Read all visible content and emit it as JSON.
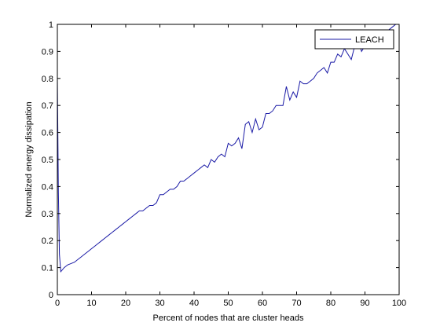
{
  "chart_data": {
    "type": "line",
    "title": "",
    "xlabel": "Percent of nodes that are cluster heads",
    "ylabel": "Normalized energy dissipation",
    "xlim": [
      0,
      100
    ],
    "ylim": [
      0,
      1
    ],
    "xticks": [
      0,
      10,
      20,
      30,
      40,
      50,
      60,
      70,
      80,
      90,
      100
    ],
    "yticks": [
      0,
      0.1,
      0.2,
      0.3,
      0.4,
      0.5,
      0.6,
      0.7,
      0.8,
      0.9,
      1
    ],
    "grid": false,
    "legend_position": "top-right",
    "series": [
      {
        "name": "LEACH",
        "color": "#1a1aa6",
        "x": [
          0,
          0.3,
          0.6,
          1,
          2,
          3,
          4,
          5,
          6,
          7,
          8,
          9,
          10,
          11,
          12,
          13,
          14,
          15,
          16,
          17,
          18,
          19,
          20,
          21,
          22,
          23,
          24,
          25,
          26,
          27,
          28,
          29,
          30,
          31,
          32,
          33,
          34,
          35,
          36,
          37,
          38,
          39,
          40,
          41,
          42,
          43,
          44,
          45,
          46,
          47,
          48,
          49,
          50,
          51,
          52,
          53,
          54,
          55,
          56,
          57,
          58,
          59,
          60,
          61,
          62,
          63,
          64,
          65,
          66,
          67,
          68,
          69,
          70,
          71,
          72,
          73,
          74,
          75,
          76,
          77,
          78,
          79,
          80,
          81,
          82,
          83,
          84,
          85,
          86,
          87,
          88,
          89,
          90,
          91,
          92,
          93,
          94,
          95,
          96,
          97,
          98,
          99,
          100
        ],
        "y": [
          0.8,
          0.38,
          0.15,
          0.085,
          0.1,
          0.11,
          0.115,
          0.12,
          0.13,
          0.14,
          0.15,
          0.16,
          0.17,
          0.18,
          0.19,
          0.2,
          0.21,
          0.22,
          0.23,
          0.24,
          0.25,
          0.26,
          0.27,
          0.28,
          0.29,
          0.3,
          0.31,
          0.31,
          0.32,
          0.33,
          0.33,
          0.34,
          0.37,
          0.37,
          0.38,
          0.39,
          0.39,
          0.4,
          0.42,
          0.42,
          0.43,
          0.44,
          0.45,
          0.46,
          0.47,
          0.48,
          0.47,
          0.5,
          0.49,
          0.51,
          0.52,
          0.51,
          0.56,
          0.55,
          0.56,
          0.58,
          0.54,
          0.63,
          0.64,
          0.6,
          0.65,
          0.61,
          0.62,
          0.67,
          0.67,
          0.68,
          0.7,
          0.7,
          0.7,
          0.77,
          0.72,
          0.75,
          0.73,
          0.79,
          0.78,
          0.78,
          0.79,
          0.8,
          0.82,
          0.83,
          0.84,
          0.82,
          0.86,
          0.86,
          0.89,
          0.88,
          0.91,
          0.89,
          0.87,
          0.92,
          0.94,
          0.9,
          0.92,
          0.93,
          0.94,
          0.95,
          0.96,
          0.97,
          0.97,
          0.98,
          0.99,
          1.0,
          1.0
        ]
      }
    ]
  }
}
